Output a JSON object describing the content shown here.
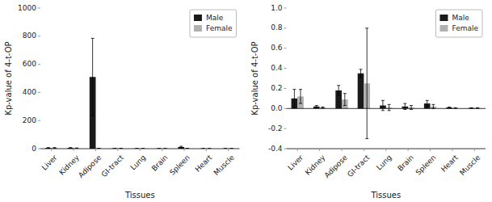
{
  "chart_data": [
    {
      "type": "bar",
      "xlabel": "Tissues",
      "ylabel": "Kp-value of 4-t-OP",
      "categories": [
        "Liver",
        "Kidney",
        "Adipose",
        "GI-tract",
        "Lung",
        "Brain",
        "Spleen",
        "Heart",
        "Muscle"
      ],
      "series": [
        {
          "name": "Male",
          "color": "#1a1a1a",
          "values": [
            5,
            5,
            510,
            2,
            1,
            1,
            12,
            1,
            1
          ],
          "errors": [
            3,
            3,
            275,
            1,
            0.5,
            0.5,
            5,
            0.5,
            0.5
          ]
        },
        {
          "name": "Female",
          "color": "#b0b0b0",
          "values": [
            5,
            3,
            2,
            2,
            1,
            1,
            2,
            1,
            1
          ],
          "errors": [
            3,
            2,
            1,
            1,
            0.5,
            0.5,
            1,
            0.5,
            0.5
          ]
        }
      ],
      "ylim": [
        0,
        1000
      ],
      "yticks": [
        0,
        200,
        400,
        600,
        800,
        1000
      ],
      "legend": "upper right"
    },
    {
      "type": "bar",
      "xlabel": "Tissues",
      "ylabel": "Kp-value of 4-t-OP",
      "categories": [
        "Liver",
        "Kidney",
        "Adipose",
        "GI-tract",
        "Lung",
        "Brain",
        "Spleen",
        "Heart",
        "Muscle"
      ],
      "series": [
        {
          "name": "Male",
          "color": "#1a1a1a",
          "values": [
            0.1,
            0.02,
            0.18,
            0.35,
            0.03,
            0.02,
            0.05,
            0.01,
            0.005
          ],
          "errors": [
            0.09,
            0.01,
            0.05,
            0.04,
            0.05,
            0.03,
            0.03,
            0.005,
            0.003
          ]
        },
        {
          "name": "Female",
          "color": "#b0b0b0",
          "values": [
            0.12,
            0.01,
            0.09,
            0.25,
            0.01,
            0.01,
            0.02,
            0.005,
            0.005
          ],
          "errors": [
            0.07,
            0.005,
            0.06,
            0.55,
            0.03,
            0.02,
            0.02,
            0.003,
            0.003
          ]
        }
      ],
      "ylim": [
        -0.4,
        1.0
      ],
      "yticks": [
        -0.4,
        -0.2,
        {
          "value": 0.0,
          "label": "0.0"
        },
        0.2,
        0.4,
        0.6,
        0.8,
        {
          "value": 1.0,
          "label": "1.0"
        }
      ],
      "legend": "upper right"
    }
  ]
}
